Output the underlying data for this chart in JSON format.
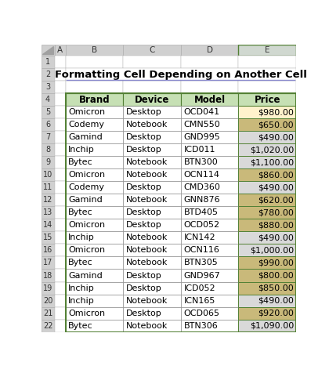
{
  "title": "Formatting Cell Depending on Another Cell",
  "col_letters": [
    "A",
    "B",
    "C",
    "D",
    "E"
  ],
  "row_numbers": [
    1,
    2,
    3,
    4,
    5,
    6,
    7,
    8,
    9,
    10,
    11,
    12,
    13,
    14,
    15,
    16,
    17,
    18,
    19,
    20,
    21,
    22
  ],
  "headers": [
    "Brand",
    "Device",
    "Model",
    "Price"
  ],
  "rows": [
    [
      "Omicron",
      "Desktop",
      "OCD041",
      "$980.00",
      980
    ],
    [
      "Codemy",
      "Notebook",
      "CMN550",
      "$650.00",
      650
    ],
    [
      "Gamind",
      "Desktop",
      "GND995",
      "$490.00",
      490
    ],
    [
      "Inchip",
      "Desktop",
      "ICD011",
      "$1,020.00",
      1020
    ],
    [
      "Bytec",
      "Notebook",
      "BTN300",
      "$1,100.00",
      1100
    ],
    [
      "Omicron",
      "Notebook",
      "OCN114",
      "$860.00",
      860
    ],
    [
      "Codemy",
      "Desktop",
      "CMD360",
      "$490.00",
      490
    ],
    [
      "Gamind",
      "Notebook",
      "GNN876",
      "$620.00",
      620
    ],
    [
      "Bytec",
      "Desktop",
      "BTD405",
      "$780.00",
      780
    ],
    [
      "Omicron",
      "Desktop",
      "OCD052",
      "$880.00",
      880
    ],
    [
      "Inchip",
      "Notebook",
      "ICN142",
      "$490.00",
      490
    ],
    [
      "Omicron",
      "Notebook",
      "OCN116",
      "$1,000.00",
      1000
    ],
    [
      "Bytec",
      "Notebook",
      "BTN305",
      "$990.00",
      990
    ],
    [
      "Gamind",
      "Desktop",
      "GND967",
      "$800.00",
      800
    ],
    [
      "Inchip",
      "Desktop",
      "ICD052",
      "$850.00",
      850
    ],
    [
      "Inchip",
      "Notebook",
      "ICN165",
      "$490.00",
      490
    ],
    [
      "Omicron",
      "Desktop",
      "OCD065",
      "$920.00",
      920
    ],
    [
      "Bytec",
      "Notebook",
      "BTN306",
      "$1,090.00",
      1090
    ]
  ],
  "excel_col_header_bg": "#d0d0d0",
  "excel_row_header_bg": "#d0d0d0",
  "excel_bg": "#ffffff",
  "excel_border": "#b0b0b0",
  "header_bg": "#c6e0b4",
  "header_text": "#000000",
  "highlight_color_980": "#ffff99",
  "highlight_color_between": "#c9b97a",
  "no_highlight_color": "#d9d9d9",
  "white_cell": "#ffffff",
  "table_border_color": "#538135",
  "inner_border_color": "#7f7f7f",
  "title_fontsize": 9.5,
  "header_fontsize": 8.5,
  "cell_fontsize": 8.0,
  "excel_header_fontsize": 7.5,
  "col_E_selected_bg": "#d0d8d0"
}
